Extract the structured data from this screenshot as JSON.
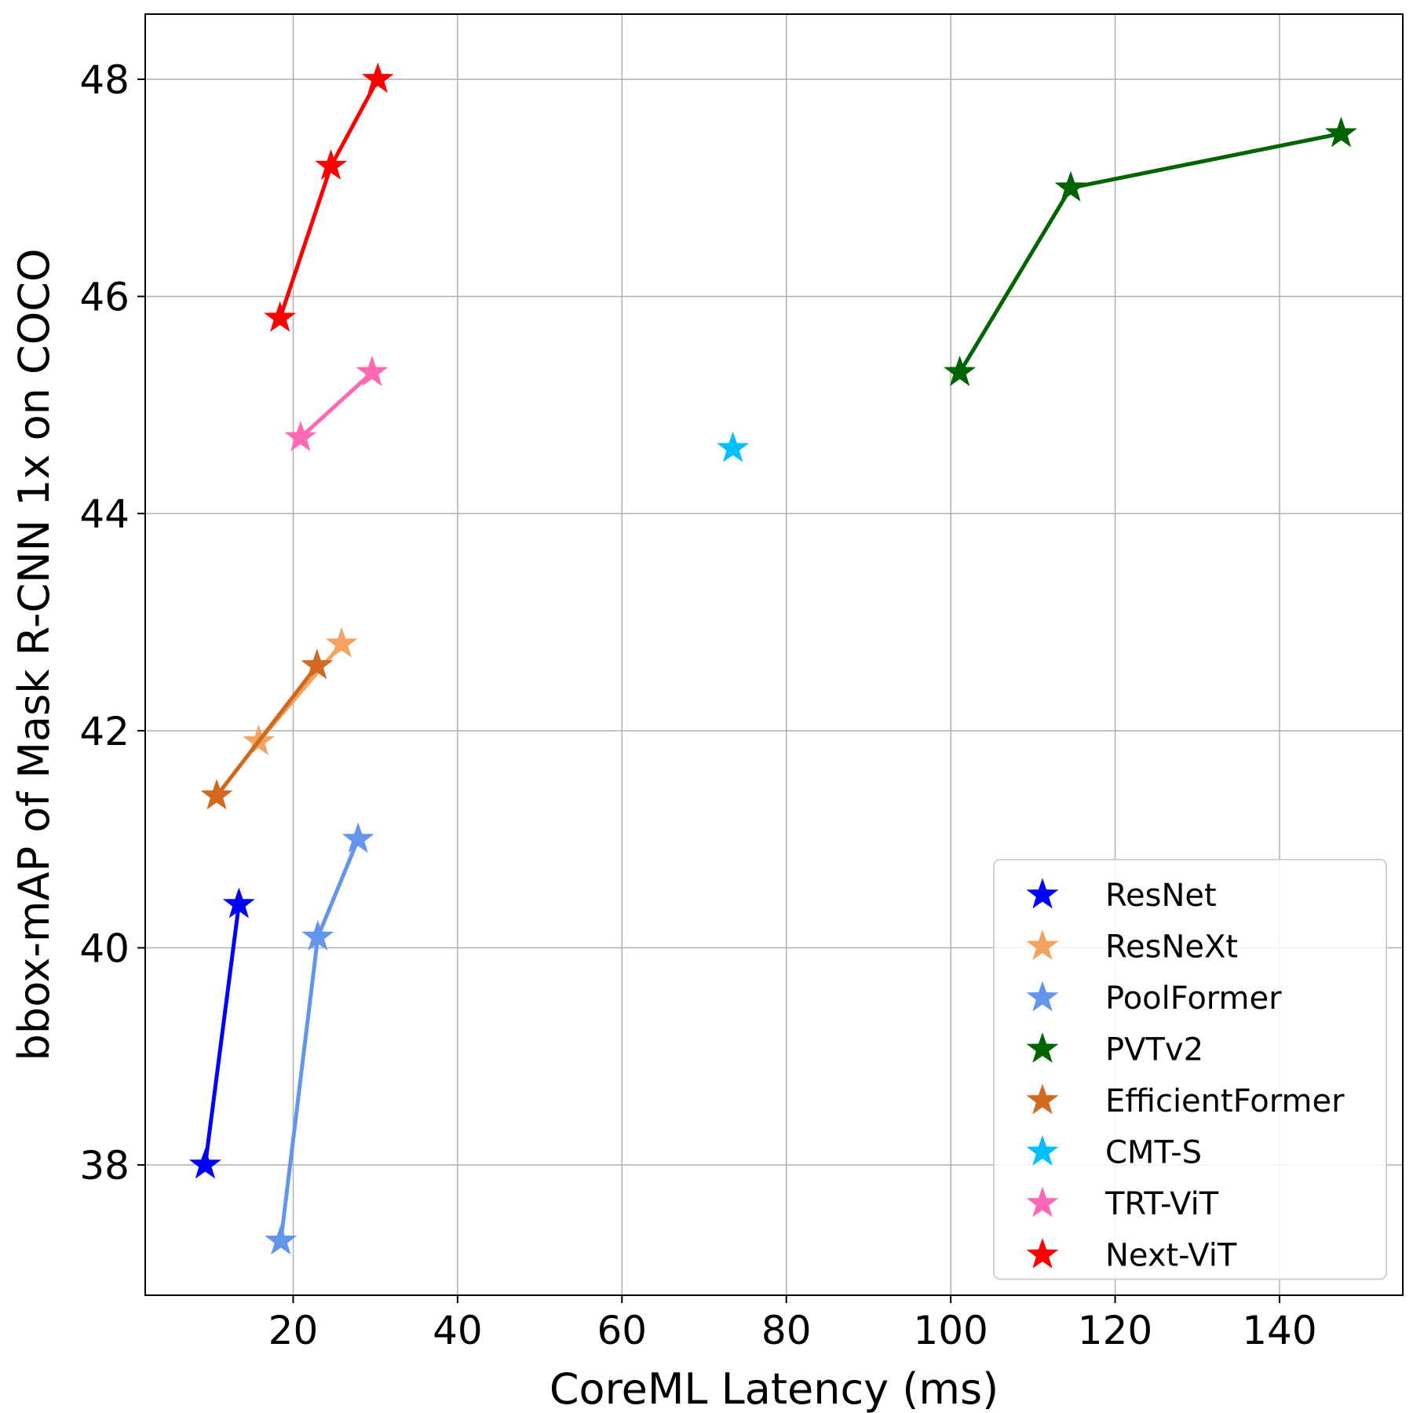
{
  "chart_data": {
    "type": "line",
    "xlabel": "CoreML Latency (ms)",
    "ylabel": "bbox-mAP of Mask R-CNN 1x on COCO",
    "xlim": [
      2,
      155
    ],
    "ylim": [
      36.8,
      48.6
    ],
    "xticks": [
      20,
      40,
      60,
      80,
      100,
      120,
      140
    ],
    "yticks": [
      38,
      40,
      42,
      44,
      46,
      48
    ],
    "grid": true,
    "legend_position": "bottom-right",
    "marker": "star",
    "series": [
      {
        "name": "ResNet",
        "color": "#0000ff",
        "points": [
          [
            9.3,
            38.0
          ],
          [
            13.4,
            40.4
          ]
        ]
      },
      {
        "name": "ResNeXt",
        "color": "#f4a460",
        "points": [
          [
            15.8,
            41.9
          ],
          [
            25.9,
            42.8
          ]
        ]
      },
      {
        "name": "PoolFormer",
        "color": "#6495ed",
        "points": [
          [
            18.5,
            37.3
          ],
          [
            23.0,
            40.1
          ],
          [
            27.9,
            41.0
          ]
        ]
      },
      {
        "name": "PVTv2",
        "color": "#006400",
        "points": [
          [
            101.1,
            45.3
          ],
          [
            114.6,
            47.0
          ],
          [
            147.5,
            47.5
          ]
        ]
      },
      {
        "name": "EfficientFormer",
        "color": "#d2691e",
        "points": [
          [
            10.7,
            41.4
          ],
          [
            22.9,
            42.6
          ]
        ]
      },
      {
        "name": "CMT-S",
        "color": "#00bfff",
        "points": [
          [
            73.5,
            44.6
          ]
        ]
      },
      {
        "name": "TRT-ViT",
        "color": "#ff69b4",
        "points": [
          [
            20.9,
            44.7
          ],
          [
            29.6,
            45.3
          ]
        ]
      },
      {
        "name": "Next-ViT",
        "color": "#ff0000",
        "points": [
          [
            18.4,
            45.8
          ],
          [
            24.6,
            47.2
          ],
          [
            30.3,
            48.0
          ]
        ]
      }
    ]
  }
}
